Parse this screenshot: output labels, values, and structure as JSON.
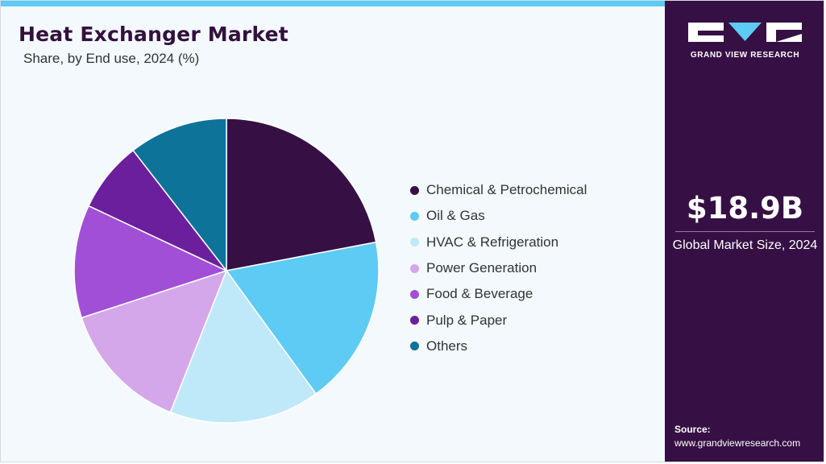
{
  "brand": {
    "name": "GRAND VIEW RESEARCH",
    "logo_icon": "gvr-logo-icon"
  },
  "header": {
    "title": "Heat Exchanger Market",
    "subtitle": "Share, by End use, 2024 (%)"
  },
  "sidebar": {
    "market_value": "$18.9B",
    "market_label": "Global Market Size, 2024",
    "source_label": "Source:",
    "source_url": "www.grandviewresearch.com"
  },
  "colors": {
    "background": "#f3f9fc",
    "accent": "#5ecbf4",
    "sidebar": "#361044"
  },
  "chart_data": {
    "type": "pie",
    "title": "Heat Exchanger Market",
    "subtitle": "Share, by End use, 2024 (%)",
    "legend_position": "right",
    "start_angle_deg": 0,
    "direction": "clockwise",
    "categories": [
      "Chemical & Petrochemical",
      "Oil & Gas",
      "HVAC & Refrigeration",
      "Power Generation",
      "Food & Beverage",
      "Pulp & Paper",
      "Others"
    ],
    "values": [
      22.0,
      18.0,
      16.0,
      14.0,
      12.0,
      7.5,
      10.5
    ],
    "colors": [
      "#361044",
      "#5ecbf4",
      "#bfe9f9",
      "#d4a7eb",
      "#a24fd8",
      "#6b1f9c",
      "#0e7399"
    ]
  }
}
